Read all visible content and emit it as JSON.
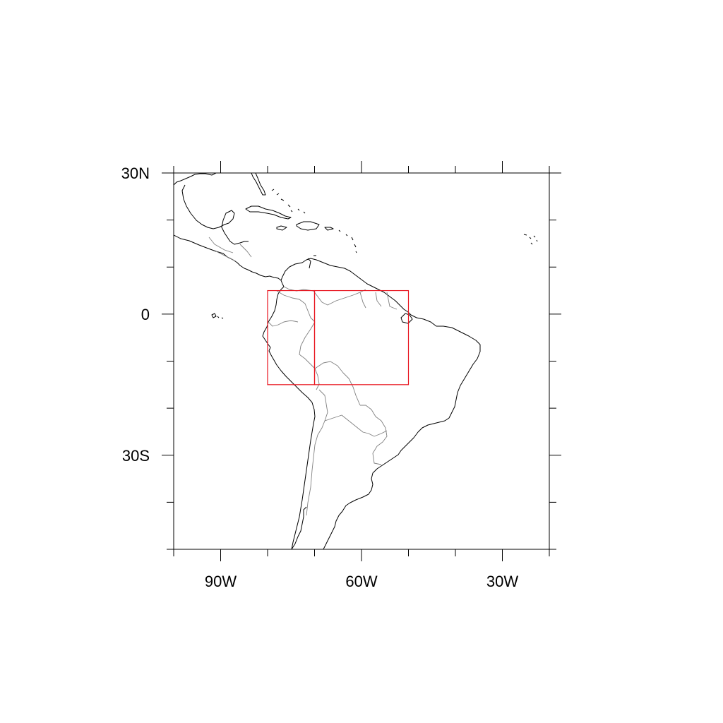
{
  "map": {
    "projection": "cylindrical-equidistant",
    "lon_range": [
      -100,
      -20
    ],
    "lat_range": [
      -50,
      30
    ],
    "frame_color": "#000000",
    "coastline_color": "#000000",
    "border_color": "#808080",
    "box_color": "#e8141e",
    "x_ticks": [
      {
        "lon": -90,
        "label": "90W"
      },
      {
        "lon": -60,
        "label": "60W"
      },
      {
        "lon": -30,
        "label": "30W"
      }
    ],
    "y_ticks": [
      {
        "lat": 30,
        "label": "30N"
      },
      {
        "lat": 0,
        "label": "0"
      },
      {
        "lat": -30,
        "label": "30S"
      }
    ],
    "minor_tick_lons": [
      -100,
      -80,
      -70,
      -50,
      -40,
      -20
    ],
    "minor_tick_lats": [
      20,
      10,
      -10,
      -20,
      -40,
      -50
    ],
    "regions": [
      {
        "name": "west-box",
        "lon": [
          -80,
          -70
        ],
        "lat": [
          -15,
          5
        ]
      },
      {
        "name": "east-box",
        "lon": [
          -70,
          -50
        ],
        "lat": [
          -15,
          5
        ]
      }
    ]
  }
}
